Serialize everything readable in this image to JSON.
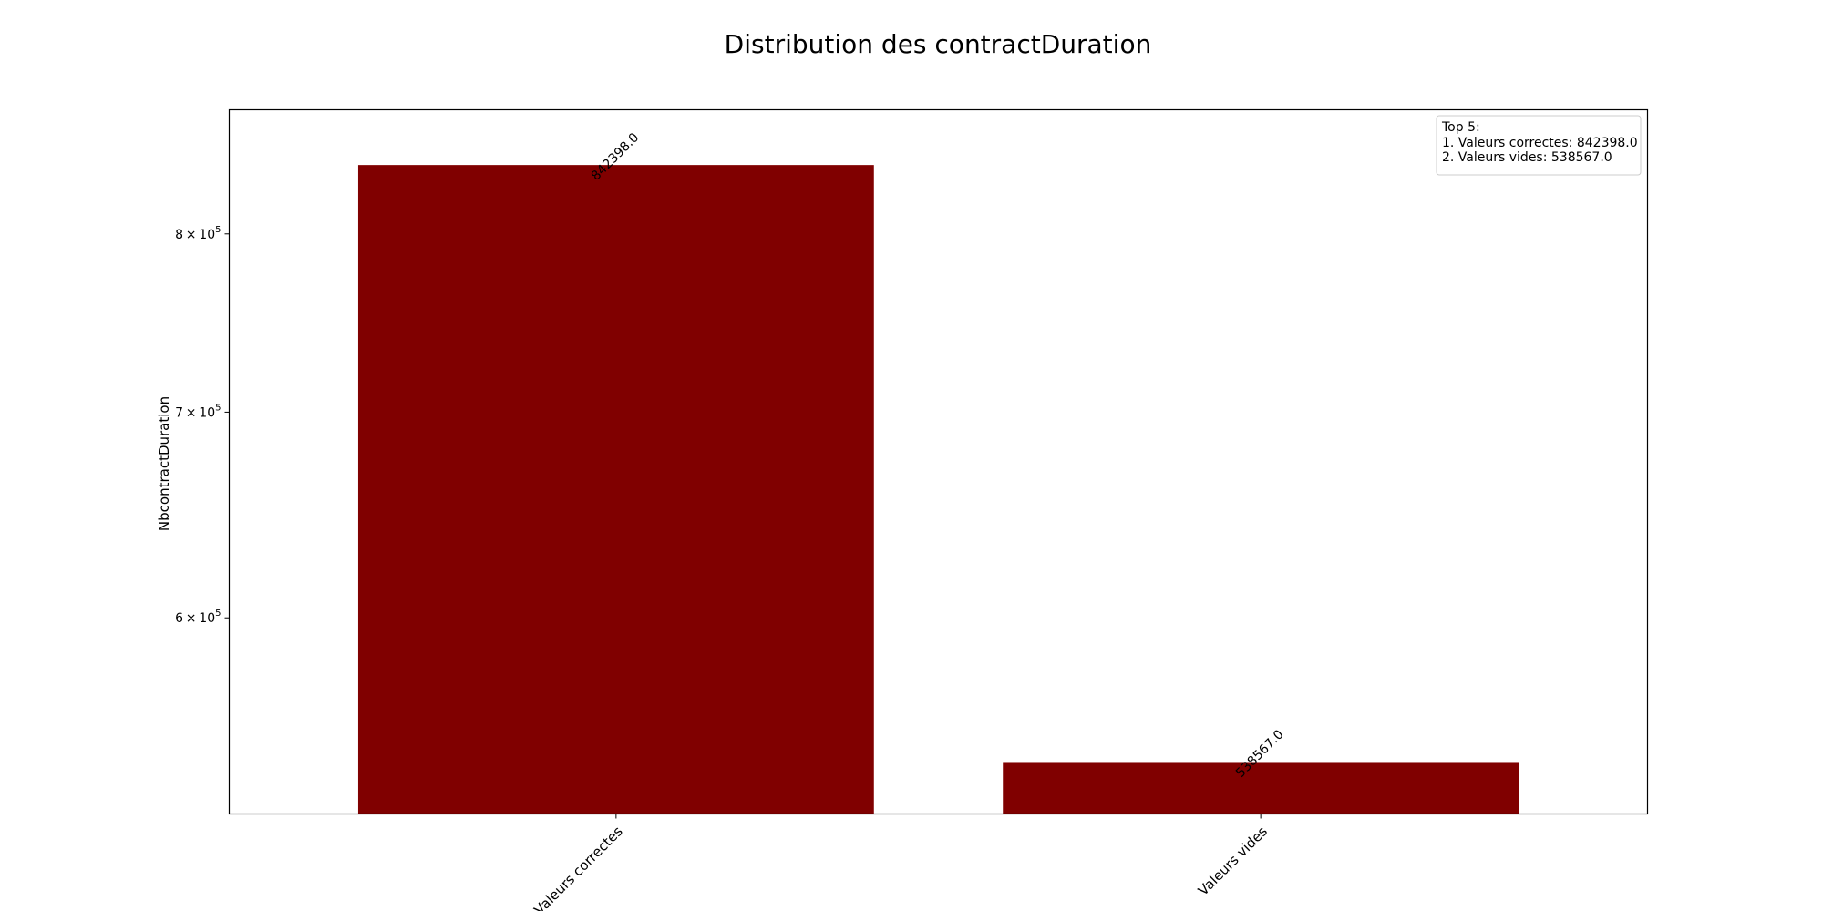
{
  "chart_data": {
    "type": "bar",
    "title": "Distribution des contractDuration",
    "xlabel": "",
    "ylabel": "NbcontractDuration",
    "yscale": "log",
    "categories": [
      "Valeurs correctes",
      "Valeurs vides"
    ],
    "values": [
      842398.0,
      538567.0
    ],
    "data_labels": [
      "842398.0",
      "538567.0"
    ],
    "bar_color": "#800000",
    "ylim": [
      518000,
      878000
    ],
    "grid": false,
    "y_ticks": [
      {
        "value": 600000,
        "base": "6 × 10",
        "exp": "5"
      },
      {
        "value": 700000,
        "base": "7 × 10",
        "exp": "5"
      },
      {
        "value": 800000,
        "base": "8 × 10",
        "exp": "5"
      }
    ],
    "legend": {
      "placement": "top-right",
      "lines": [
        "Top 5:",
        "1. Valeurs correctes: 842398.0",
        "2. Valeurs vides: 538567.0"
      ]
    }
  }
}
